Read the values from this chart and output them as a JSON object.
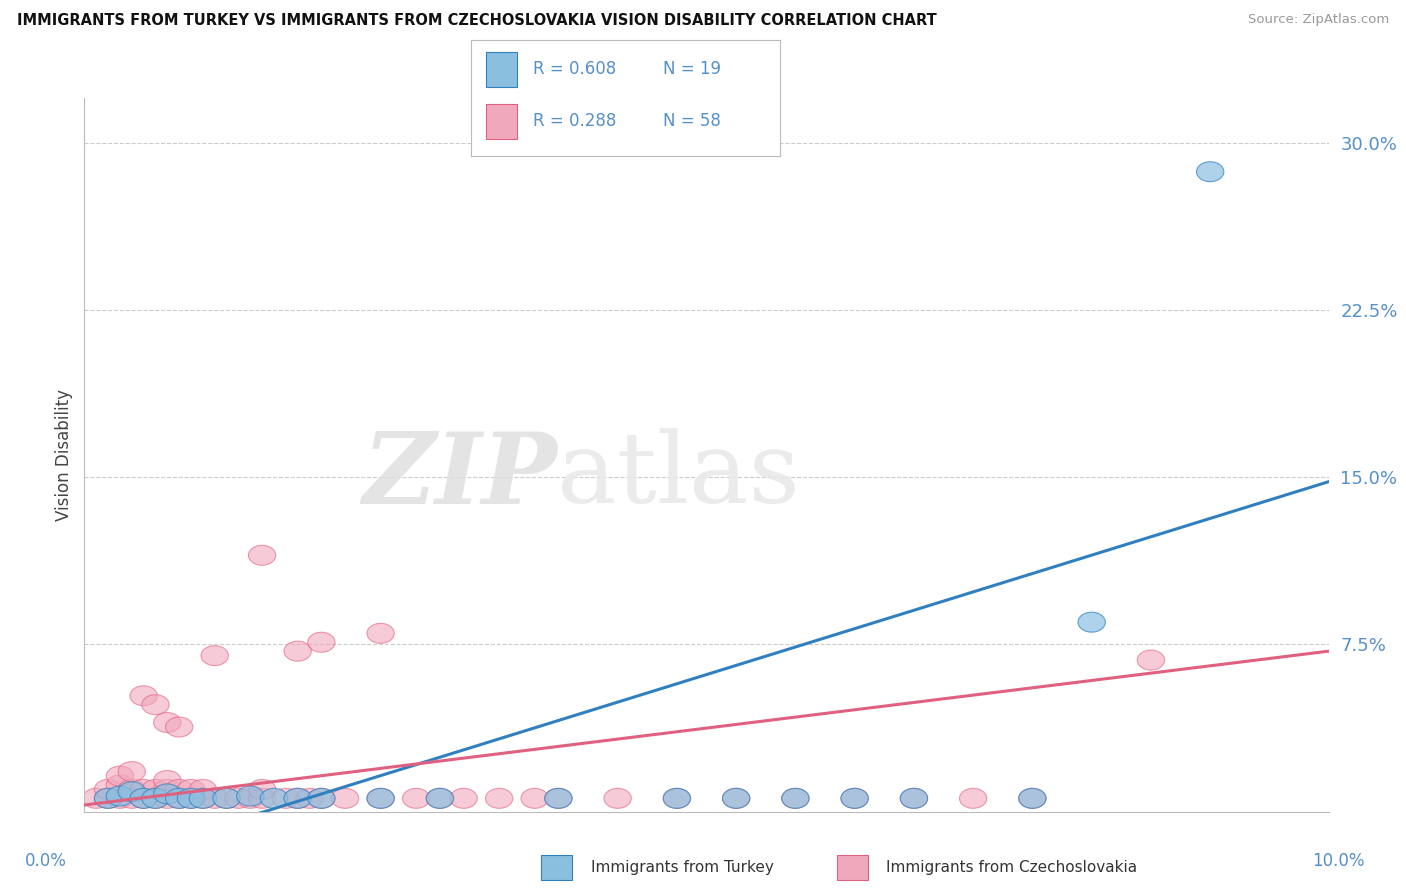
{
  "title": "IMMIGRANTS FROM TURKEY VS IMMIGRANTS FROM CZECHOSLOVAKIA VISION DISABILITY CORRELATION CHART",
  "source": "Source: ZipAtlas.com",
  "ylabel": "Vision Disability",
  "xlim": [
    0.0,
    0.105
  ],
  "ylim": [
    -0.005,
    0.335
  ],
  "plot_ylim": [
    0.0,
    0.32
  ],
  "ytick_vals": [
    0.075,
    0.15,
    0.225,
    0.3
  ],
  "ytick_labels": [
    "7.5%",
    "15.0%",
    "22.5%",
    "30.0%"
  ],
  "color_blue": "#8bbfe0",
  "color_pink": "#f0a8bc",
  "color_blue_line": "#3080c0",
  "color_pink_line": "#e06080",
  "color_label": "#5590c8",
  "watermark_zip_color": "#dedede",
  "watermark_atlas_color": "#e8e8e8",
  "blue_scatter": [
    [
      0.002,
      0.006
    ],
    [
      0.003,
      0.007
    ],
    [
      0.004,
      0.009
    ],
    [
      0.005,
      0.006
    ],
    [
      0.006,
      0.006
    ],
    [
      0.007,
      0.008
    ],
    [
      0.008,
      0.006
    ],
    [
      0.009,
      0.006
    ],
    [
      0.01,
      0.006
    ],
    [
      0.012,
      0.006
    ],
    [
      0.014,
      0.007
    ],
    [
      0.016,
      0.006
    ],
    [
      0.018,
      0.006
    ],
    [
      0.02,
      0.006
    ],
    [
      0.025,
      0.006
    ],
    [
      0.03,
      0.006
    ],
    [
      0.04,
      0.006
    ],
    [
      0.05,
      0.006
    ],
    [
      0.06,
      0.006
    ],
    [
      0.07,
      0.006
    ],
    [
      0.08,
      0.006
    ],
    [
      0.055,
      0.006
    ],
    [
      0.065,
      0.006
    ],
    [
      0.085,
      0.085
    ],
    [
      0.095,
      0.287
    ]
  ],
  "pink_scatter": [
    [
      0.001,
      0.006
    ],
    [
      0.002,
      0.006
    ],
    [
      0.002,
      0.01
    ],
    [
      0.003,
      0.006
    ],
    [
      0.003,
      0.012
    ],
    [
      0.003,
      0.016
    ],
    [
      0.004,
      0.006
    ],
    [
      0.004,
      0.01
    ],
    [
      0.004,
      0.018
    ],
    [
      0.005,
      0.006
    ],
    [
      0.005,
      0.01
    ],
    [
      0.005,
      0.052
    ],
    [
      0.006,
      0.006
    ],
    [
      0.006,
      0.01
    ],
    [
      0.006,
      0.048
    ],
    [
      0.007,
      0.006
    ],
    [
      0.007,
      0.01
    ],
    [
      0.007,
      0.014
    ],
    [
      0.007,
      0.04
    ],
    [
      0.008,
      0.006
    ],
    [
      0.008,
      0.01
    ],
    [
      0.008,
      0.038
    ],
    [
      0.009,
      0.006
    ],
    [
      0.009,
      0.01
    ],
    [
      0.01,
      0.006
    ],
    [
      0.01,
      0.01
    ],
    [
      0.011,
      0.006
    ],
    [
      0.011,
      0.07
    ],
    [
      0.012,
      0.006
    ],
    [
      0.013,
      0.006
    ],
    [
      0.014,
      0.006
    ],
    [
      0.015,
      0.006
    ],
    [
      0.015,
      0.01
    ],
    [
      0.015,
      0.115
    ],
    [
      0.017,
      0.006
    ],
    [
      0.018,
      0.006
    ],
    [
      0.018,
      0.072
    ],
    [
      0.019,
      0.006
    ],
    [
      0.02,
      0.006
    ],
    [
      0.02,
      0.076
    ],
    [
      0.022,
      0.006
    ],
    [
      0.025,
      0.006
    ],
    [
      0.025,
      0.08
    ],
    [
      0.028,
      0.006
    ],
    [
      0.03,
      0.006
    ],
    [
      0.032,
      0.006
    ],
    [
      0.035,
      0.006
    ],
    [
      0.038,
      0.006
    ],
    [
      0.04,
      0.006
    ],
    [
      0.045,
      0.006
    ],
    [
      0.05,
      0.006
    ],
    [
      0.055,
      0.006
    ],
    [
      0.06,
      0.006
    ],
    [
      0.065,
      0.006
    ],
    [
      0.07,
      0.006
    ],
    [
      0.075,
      0.006
    ],
    [
      0.08,
      0.006
    ],
    [
      0.09,
      0.068
    ]
  ],
  "blue_line_x": [
    0.0,
    0.105
  ],
  "blue_line_y": [
    -0.025,
    0.148
  ],
  "pink_line_x": [
    0.0,
    0.105
  ],
  "pink_line_y": [
    0.003,
    0.072
  ]
}
